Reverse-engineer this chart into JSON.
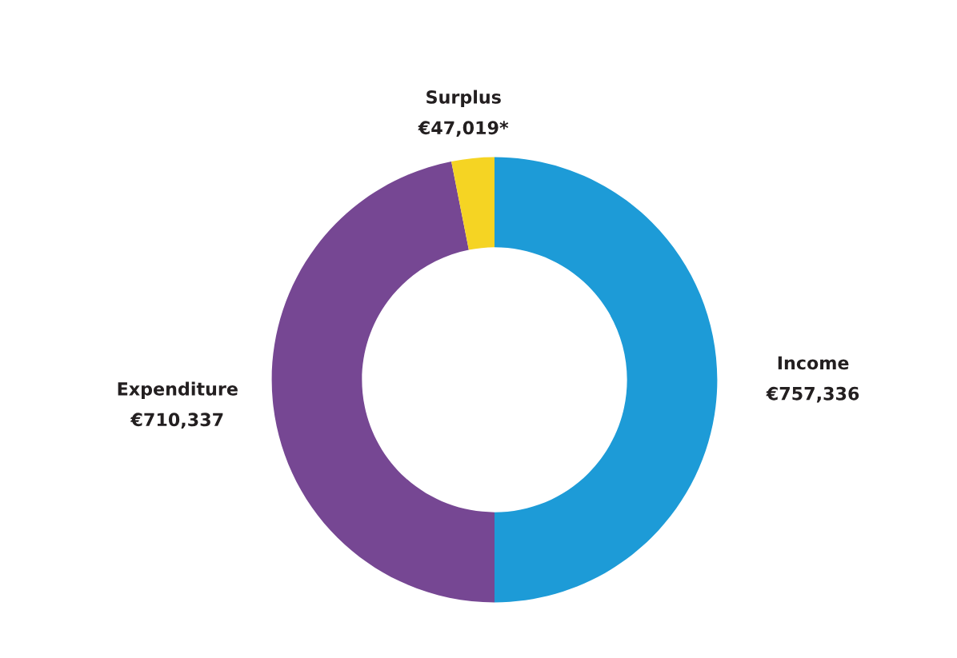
{
  "chart_data": {
    "type": "donut",
    "categories": [
      "Income",
      "Expenditure",
      "Surplus"
    ],
    "values": [
      757336,
      710337,
      47019
    ],
    "colors": [
      "#1d9bd7",
      "#764793",
      "#f5d423"
    ],
    "value_labels": [
      "€757,336",
      "€710,337",
      "€47,019*"
    ]
  }
}
